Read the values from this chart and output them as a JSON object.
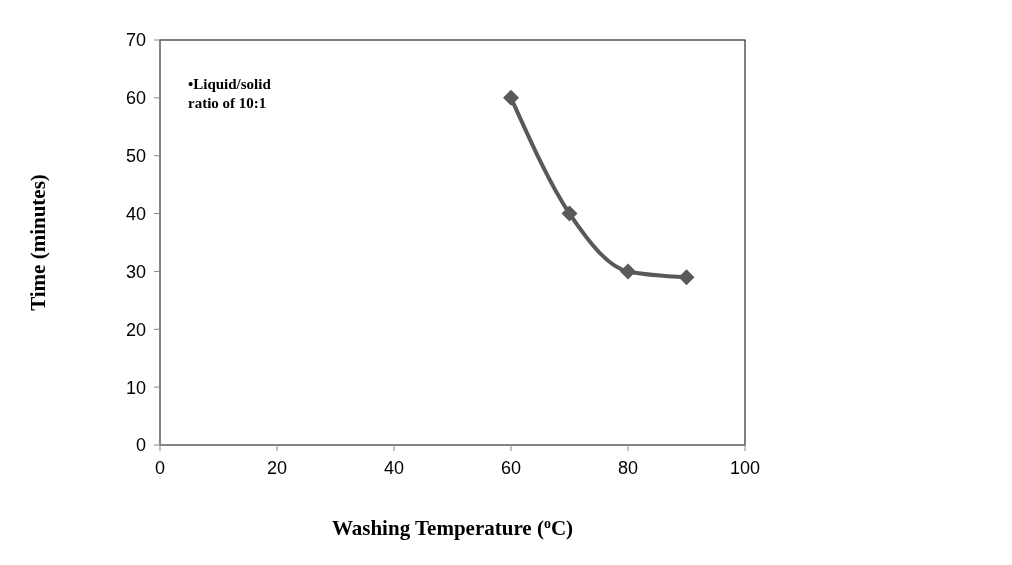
{
  "chart_data": {
    "type": "line",
    "xlabel": "Washing Temperature ($^{o}$C)",
    "ylabel": "Time (minutes)",
    "x": [
      60,
      70,
      80,
      90
    ],
    "series": [
      {
        "color": "#595959",
        "values": [
          60,
          40,
          30,
          29
        ]
      }
    ],
    "xlim": [
      0,
      100
    ],
    "xticks": [
      0,
      20,
      40,
      60,
      80,
      100
    ],
    "ylim": [
      0,
      70
    ],
    "yticks": [
      0,
      10,
      20,
      30,
      40,
      50,
      60,
      70
    ],
    "marker": "diamond",
    "line_style": "solid",
    "annotations": [
      "•Liquid/solid ratio of 10:1"
    ]
  }
}
